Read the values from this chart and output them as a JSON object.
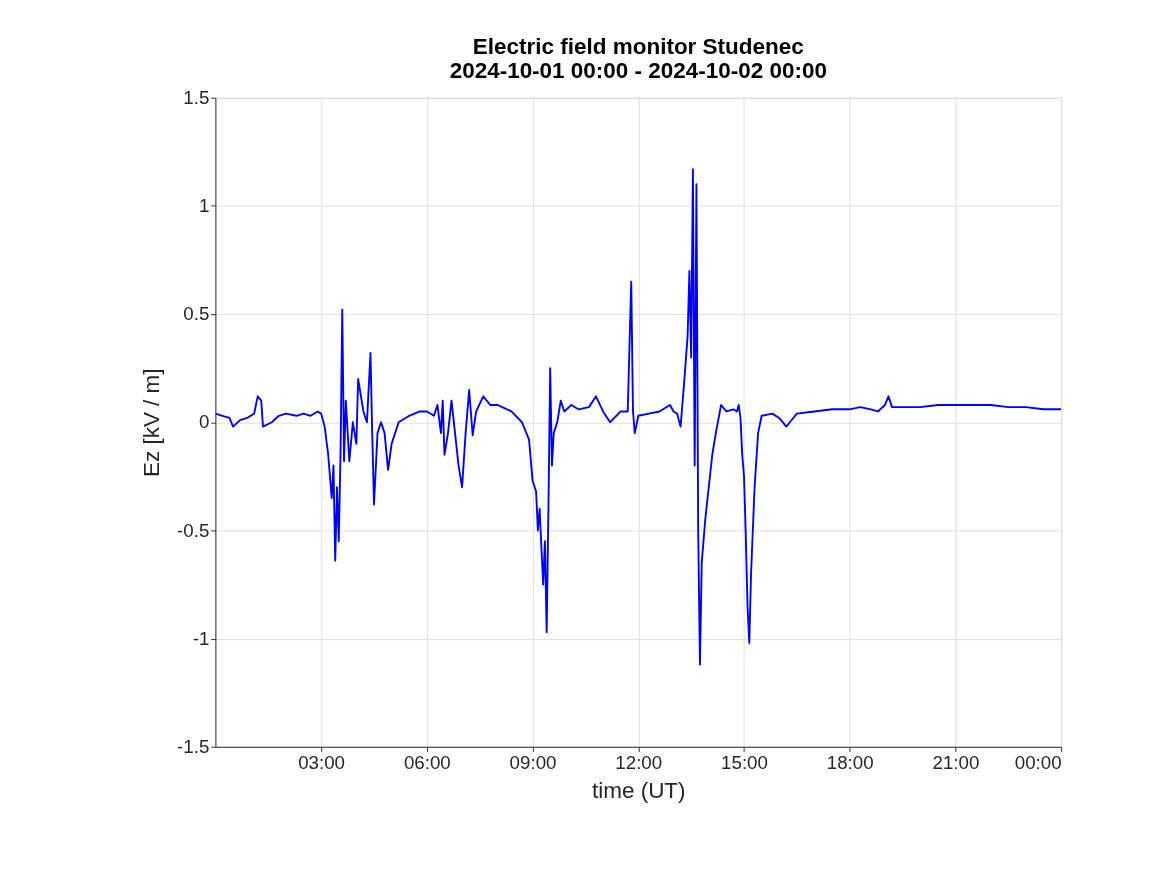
{
  "chart_data": {
    "type": "line",
    "title": [
      "Electric field monitor Studenec",
      "2024-10-01 00:00 - 2024-10-02 00:00"
    ],
    "xlabel": "time (UT)",
    "ylabel": "Ez [kV / m]",
    "x": [
      0.0,
      0.2,
      0.4,
      0.5,
      0.7,
      0.9,
      1.1,
      1.2,
      1.3,
      1.35,
      1.6,
      1.8,
      2.0,
      2.3,
      2.5,
      2.7,
      2.9,
      3.0,
      3.1,
      3.2,
      3.3,
      3.35,
      3.4,
      3.45,
      3.5,
      3.55,
      3.6,
      3.65,
      3.7,
      3.8,
      3.9,
      4.0,
      4.05,
      4.2,
      4.3,
      4.4,
      4.45,
      4.5,
      4.6,
      4.7,
      4.8,
      4.9,
      5.0,
      5.2,
      5.5,
      5.8,
      6.0,
      6.2,
      6.3,
      6.4,
      6.45,
      6.5,
      6.6,
      6.7,
      6.9,
      7.0,
      7.1,
      7.2,
      7.3,
      7.4,
      7.6,
      7.8,
      8.0,
      8.4,
      8.7,
      8.9,
      9.0,
      9.1,
      9.15,
      9.2,
      9.3,
      9.35,
      9.4,
      9.45,
      9.5,
      9.55,
      9.6,
      9.7,
      9.8,
      9.9,
      10.1,
      10.3,
      10.6,
      10.8,
      11.0,
      11.2,
      11.5,
      11.7,
      11.75,
      11.8,
      11.85,
      11.9,
      12.0,
      12.3,
      12.6,
      12.9,
      13.0,
      13.1,
      13.2,
      13.3,
      13.4,
      13.45,
      13.5,
      13.55,
      13.6,
      13.65,
      13.7,
      13.75,
      13.8,
      13.9,
      14.0,
      14.1,
      14.2,
      14.35,
      14.5,
      14.7,
      14.8,
      14.85,
      14.9,
      14.95,
      15.0,
      15.05,
      15.1,
      15.15,
      15.2,
      15.3,
      15.4,
      15.5,
      15.8,
      16.0,
      16.2,
      16.3,
      16.5,
      17.0,
      17.5,
      18.0,
      18.3,
      18.6,
      18.8,
      19.0,
      19.1,
      19.2,
      19.5,
      20.0,
      20.5,
      21.0,
      21.5,
      22.0,
      22.5,
      23.0,
      23.5,
      24.0
    ],
    "series": [
      {
        "color": "#0000ff",
        "values": [
          0.04,
          0.03,
          0.02,
          -0.02,
          0.01,
          0.02,
          0.04,
          0.12,
          0.1,
          -0.02,
          0.0,
          0.03,
          0.04,
          0.03,
          0.04,
          0.03,
          0.05,
          0.04,
          -0.02,
          -0.15,
          -0.35,
          -0.2,
          -0.64,
          -0.3,
          -0.55,
          -0.15,
          0.52,
          -0.18,
          0.1,
          -0.18,
          0.0,
          -0.1,
          0.2,
          0.05,
          0.0,
          0.32,
          -0.05,
          -0.38,
          -0.05,
          0.0,
          -0.05,
          -0.22,
          -0.1,
          0.0,
          0.03,
          0.05,
          0.05,
          0.03,
          0.08,
          -0.05,
          0.1,
          -0.15,
          -0.05,
          0.1,
          -0.2,
          -0.3,
          -0.05,
          0.15,
          -0.06,
          0.05,
          0.12,
          0.08,
          0.08,
          0.05,
          0.0,
          -0.08,
          -0.27,
          -0.32,
          -0.5,
          -0.4,
          -0.75,
          -0.55,
          -0.97,
          -0.4,
          0.25,
          -0.2,
          -0.05,
          0.0,
          0.1,
          0.05,
          0.08,
          0.06,
          0.07,
          0.12,
          0.05,
          0.0,
          0.05,
          0.05,
          0.35,
          0.65,
          0.05,
          -0.05,
          0.03,
          0.04,
          0.05,
          0.08,
          0.05,
          0.04,
          -0.02,
          0.18,
          0.4,
          0.7,
          0.3,
          1.17,
          -0.2,
          1.1,
          -0.5,
          -1.12,
          -0.65,
          -0.45,
          -0.3,
          -0.15,
          -0.05,
          0.08,
          0.05,
          0.06,
          0.05,
          0.08,
          0.02,
          -0.15,
          -0.25,
          -0.52,
          -0.85,
          -1.02,
          -0.7,
          -0.3,
          -0.05,
          0.03,
          0.04,
          0.02,
          -0.02,
          0.0,
          0.04,
          0.05,
          0.06,
          0.06,
          0.07,
          0.06,
          0.05,
          0.08,
          0.12,
          0.07,
          0.07,
          0.07,
          0.08,
          0.08,
          0.08,
          0.08,
          0.07,
          0.07,
          0.06,
          0.06
        ]
      }
    ],
    "xlim": [
      0,
      24
    ],
    "xticks": [
      {
        "value": 3,
        "label": "03:00"
      },
      {
        "value": 6,
        "label": "06:00"
      },
      {
        "value": 9,
        "label": "09:00"
      },
      {
        "value": 12,
        "label": "12:00"
      },
      {
        "value": 15,
        "label": "15:00"
      },
      {
        "value": 18,
        "label": "18:00"
      },
      {
        "value": 21,
        "label": "21:00"
      },
      {
        "value": 24,
        "label": "00:00"
      }
    ],
    "ylim": [
      -1.5,
      1.5
    ],
    "yticks": [
      -1.5,
      -1,
      -0.5,
      0,
      0.5,
      1,
      1.5
    ],
    "grid": true
  }
}
